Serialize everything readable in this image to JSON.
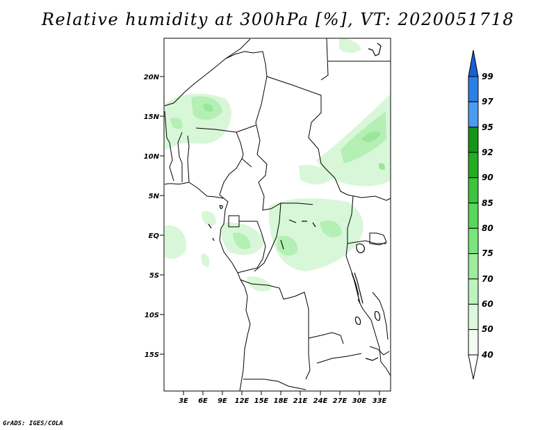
{
  "title": "Relative humidity at 300hPa [%], VT: 2020051718",
  "credit": "GrADS: IGES/COLA",
  "lat_labels": [
    "20N",
    "15N",
    "10N",
    "5N",
    "EQ",
    "5S",
    "10S",
    "15S"
  ],
  "lon_labels": [
    "3E",
    "6E",
    "9E",
    "12E",
    "15E",
    "18E",
    "21E",
    "24E",
    "27E",
    "30E",
    "33E"
  ],
  "colorbar": {
    "levels": [
      "99",
      "97",
      "95",
      "92",
      "90",
      "85",
      "80",
      "75",
      "70",
      "60",
      "50",
      "40"
    ],
    "colors": [
      "#1a5fd6",
      "#2c7fe6",
      "#4a9cf0",
      "#149614",
      "#22ad22",
      "#3cc43c",
      "#58d858",
      "#7ae57a",
      "#9cee9c",
      "#bdf4bd",
      "#dbfadb",
      "#f2fef2"
    ]
  },
  "colors": {
    "humidity_light": "#d8f7d8",
    "humidity_mid": "#b4efb4",
    "humidity_dark": "#9ae69a",
    "border": "#000000"
  }
}
